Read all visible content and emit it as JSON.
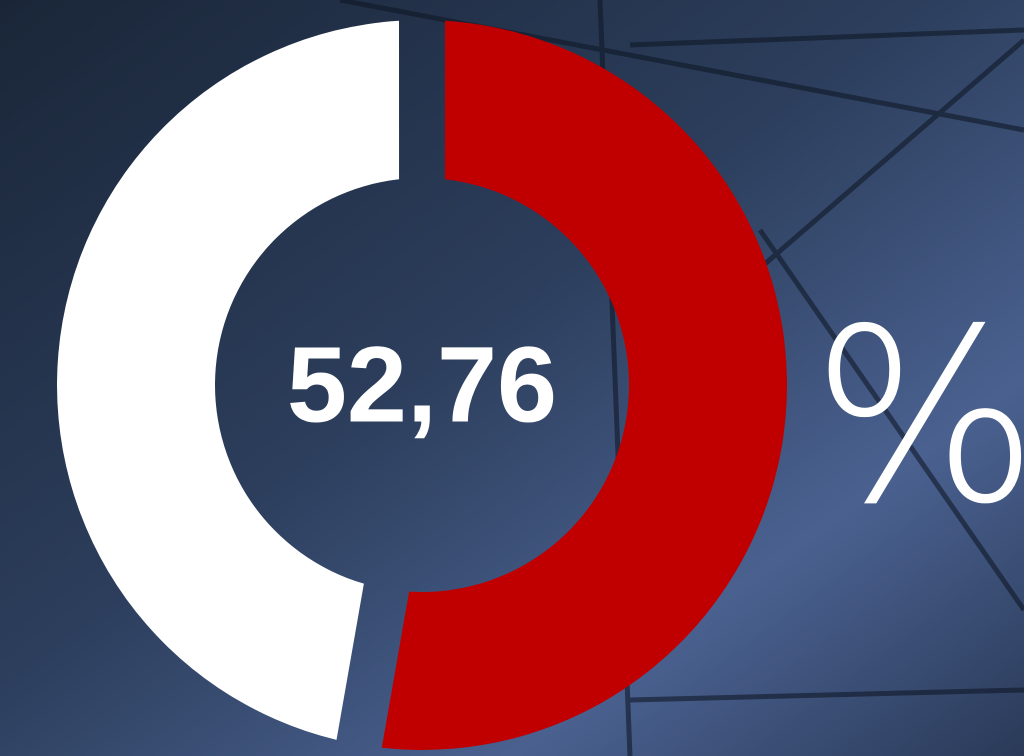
{
  "chart_data": {
    "type": "donut",
    "values": [
      52.76,
      47.24
    ],
    "value_labels": [
      "52,76",
      null
    ],
    "colors": [
      "#c00000",
      "#ffffff"
    ],
    "unit": "%"
  }
}
